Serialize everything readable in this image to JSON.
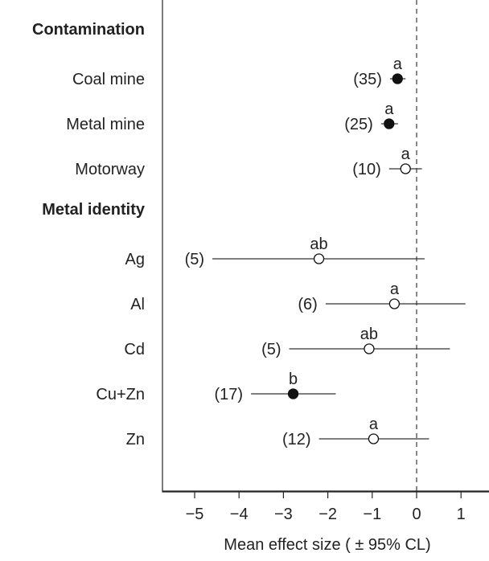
{
  "chart_data": {
    "type": "scatter",
    "subtype": "forest-plot",
    "title": "",
    "xlabel": "Mean effect size ( ± 95% CL)",
    "ylabel": "",
    "xlim": [
      -5.75,
      1.55
    ],
    "xticks": [
      -5,
      -4,
      -3,
      -2,
      -1,
      0,
      1
    ],
    "xtick_labels": [
      "−5",
      "−4",
      "−3",
      "−2",
      "−1",
      "0",
      "1"
    ],
    "reference_line": {
      "x": 0,
      "style": "dashed"
    },
    "legend": "none",
    "grid": false,
    "sections": [
      {
        "label": "Contamination",
        "rows": [
          {
            "label": "Coal mine",
            "n": "(35)",
            "letter": "a",
            "mean": -0.43,
            "lower": -0.6,
            "upper": -0.25,
            "filled": true
          },
          {
            "label": "Metal mine",
            "n": "(25)",
            "letter": "a",
            "mean": -0.62,
            "lower": -0.8,
            "upper": -0.42,
            "filled": true
          },
          {
            "label": "Motorway",
            "n": "(10)",
            "letter": "a",
            "mean": -0.25,
            "lower": -0.62,
            "upper": 0.12,
            "filled": false
          }
        ]
      },
      {
        "label": "Metal identity",
        "rows": [
          {
            "label": "Ag",
            "n": "(5)",
            "letter": "ab",
            "mean": -2.2,
            "lower": -4.6,
            "upper": 0.18,
            "filled": false
          },
          {
            "label": "Al",
            "n": "(6)",
            "letter": "a",
            "mean": -0.5,
            "lower": -2.05,
            "upper": 1.1,
            "filled": false
          },
          {
            "label": "Cd",
            "n": "(5)",
            "letter": "ab",
            "mean": -1.07,
            "lower": -2.87,
            "upper": 0.75,
            "filled": false
          },
          {
            "label": "Cu+Zn",
            "n": "(17)",
            "letter": "b",
            "mean": -2.78,
            "lower": -3.73,
            "upper": -1.82,
            "filled": true
          },
          {
            "label": "Zn",
            "n": "(12)",
            "letter": "a",
            "mean": -0.97,
            "lower": -2.2,
            "upper": 0.28,
            "filled": false
          }
        ]
      }
    ]
  }
}
